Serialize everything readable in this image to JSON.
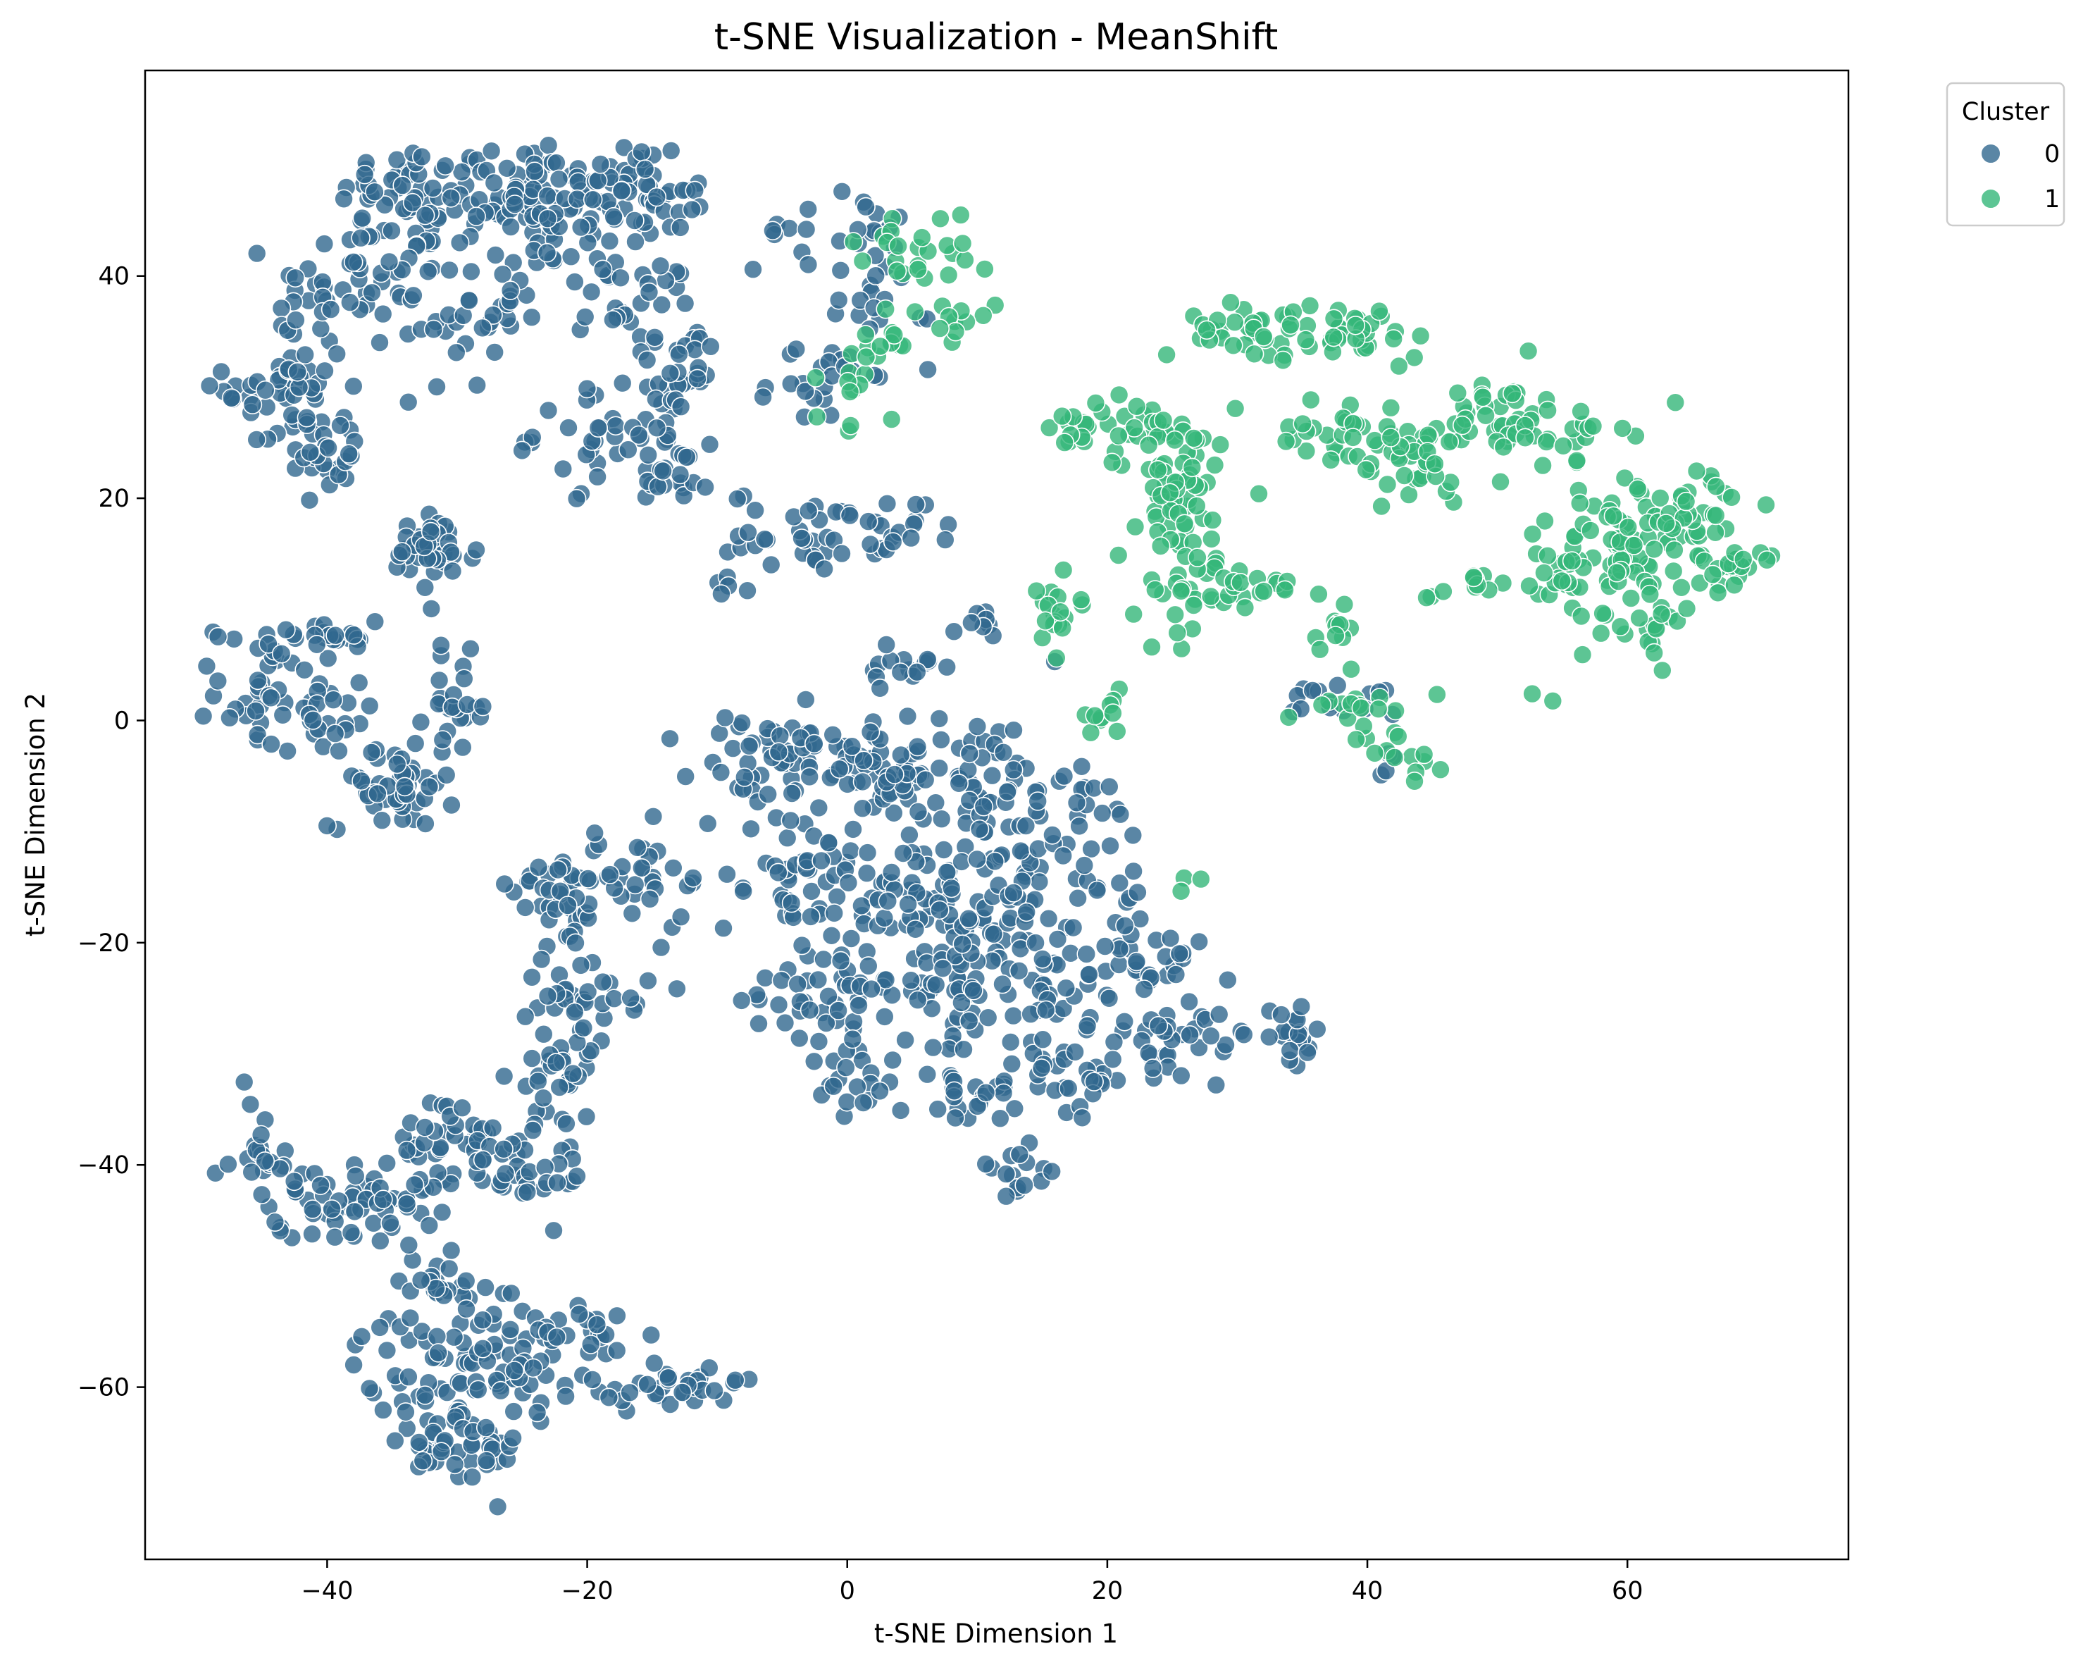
{
  "chart_data": {
    "type": "scatter",
    "title": "t-SNE Visualization - MeanShift",
    "xlabel": "t-SNE Dimension 1",
    "ylabel": "t-SNE Dimension 2",
    "xlim": [
      -54,
      77
    ],
    "ylim": [
      -75.5,
      58.5
    ],
    "xticks": [
      -40,
      -20,
      0,
      20,
      40,
      60
    ],
    "yticks": [
      -60,
      -40,
      -20,
      0,
      20,
      40
    ],
    "grid": false,
    "legend": {
      "title": "Cluster",
      "placement": "upper-right, outside axes"
    },
    "marker_alpha": 0.8,
    "marker_edge": "#ffffff",
    "series": [
      {
        "name": "0",
        "color": "#31688e",
        "blobs": [
          {
            "cx": -33,
            "cy": 47,
            "rx": 5,
            "ry": 4,
            "n": 55
          },
          {
            "cx": -25,
            "cy": 48,
            "rx": 5,
            "ry": 4,
            "n": 55
          },
          {
            "cx": -17,
            "cy": 48,
            "rx": 4,
            "ry": 4,
            "n": 50
          },
          {
            "cx": -13,
            "cy": 46,
            "rx": 2,
            "ry": 2,
            "n": 10
          },
          {
            "cx": -38,
            "cy": 39,
            "rx": 5,
            "ry": 5,
            "n": 45
          },
          {
            "cx": -30,
            "cy": 37,
            "rx": 4,
            "ry": 6,
            "n": 40
          },
          {
            "cx": -43,
            "cy": 30,
            "rx": 4,
            "ry": 5,
            "n": 50
          },
          {
            "cx": -40,
            "cy": 24,
            "rx": 3,
            "ry": 3,
            "n": 25
          },
          {
            "cx": -22,
            "cy": 43,
            "rx": 4,
            "ry": 4,
            "n": 35
          },
          {
            "cx": -16,
            "cy": 37,
            "rx": 4,
            "ry": 4,
            "n": 25
          },
          {
            "cx": -13,
            "cy": 32,
            "rx": 4,
            "ry": 3,
            "n": 20
          },
          {
            "cx": -18,
            "cy": 26,
            "rx": 5,
            "ry": 4,
            "n": 40
          },
          {
            "cx": -13,
            "cy": 23,
            "rx": 4,
            "ry": 3,
            "n": 25
          },
          {
            "cx": -32,
            "cy": 15,
            "rx": 3,
            "ry": 3,
            "n": 40
          },
          {
            "cx": -3,
            "cy": 17,
            "rx": 5,
            "ry": 3,
            "n": 35
          },
          {
            "cx": 4,
            "cy": 17,
            "rx": 3,
            "ry": 2,
            "n": 15
          },
          {
            "cx": -1,
            "cy": 44,
            "rx": 5,
            "ry": 3,
            "n": 25
          },
          {
            "cx": -1,
            "cy": 32,
            "rx": 4,
            "ry": 5,
            "n": 25
          },
          {
            "cx": 3,
            "cy": 38,
            "rx": 3,
            "ry": 3,
            "n": 12
          },
          {
            "cx": -9,
            "cy": 12,
            "rx": 1,
            "ry": 1,
            "n": 5
          },
          {
            "cx": -45,
            "cy": 3,
            "rx": 3,
            "ry": 5,
            "n": 40
          },
          {
            "cx": -40,
            "cy": 7,
            "rx": 3,
            "ry": 2,
            "n": 20
          },
          {
            "cx": -40,
            "cy": 0,
            "rx": 3,
            "ry": 3,
            "n": 20
          },
          {
            "cx": -35,
            "cy": -6,
            "rx": 4,
            "ry": 3,
            "n": 45
          },
          {
            "cx": -30,
            "cy": 1,
            "rx": 2,
            "ry": 4,
            "n": 25
          },
          {
            "cx": -6,
            "cy": -4,
            "rx": 5,
            "ry": 4,
            "n": 50
          },
          {
            "cx": 2,
            "cy": -4,
            "rx": 5,
            "ry": 4,
            "n": 50
          },
          {
            "cx": 10,
            "cy": -5,
            "rx": 6,
            "ry": 5,
            "n": 60
          },
          {
            "cx": -4,
            "cy": -14,
            "rx": 5,
            "ry": 5,
            "n": 45
          },
          {
            "cx": 4,
            "cy": -16,
            "rx": 5,
            "ry": 5,
            "n": 50
          },
          {
            "cx": 12,
            "cy": -16,
            "rx": 5,
            "ry": 5,
            "n": 50
          },
          {
            "cx": 18,
            "cy": -12,
            "rx": 5,
            "ry": 6,
            "n": 40
          },
          {
            "cx": -2,
            "cy": -24,
            "rx": 5,
            "ry": 4,
            "n": 40
          },
          {
            "cx": 7,
            "cy": -24,
            "rx": 5,
            "ry": 4,
            "n": 45
          },
          {
            "cx": 15,
            "cy": -24,
            "rx": 5,
            "ry": 4,
            "n": 40
          },
          {
            "cx": 23,
            "cy": -21,
            "rx": 4,
            "ry": 4,
            "n": 30
          },
          {
            "cx": 26,
            "cy": -28,
            "rx": 5,
            "ry": 3,
            "n": 35
          },
          {
            "cx": 0,
            "cy": -33,
            "rx": 3,
            "ry": 3,
            "n": 20
          },
          {
            "cx": 10,
            "cy": -33,
            "rx": 5,
            "ry": 3,
            "n": 30
          },
          {
            "cx": 18,
            "cy": -32,
            "rx": 4,
            "ry": 3,
            "n": 25
          },
          {
            "cx": 13,
            "cy": -40,
            "rx": 3,
            "ry": 2,
            "n": 15
          },
          {
            "cx": 34,
            "cy": -29,
            "rx": 2,
            "ry": 3,
            "n": 20
          },
          {
            "cx": 5,
            "cy": 5,
            "rx": 3,
            "ry": 2,
            "n": 15
          },
          {
            "cx": -22,
            "cy": -15,
            "rx": 3,
            "ry": 5,
            "n": 40
          },
          {
            "cx": -16,
            "cy": -15,
            "rx": 3,
            "ry": 4,
            "n": 25
          },
          {
            "cx": -20,
            "cy": -24,
            "rx": 4,
            "ry": 3,
            "n": 30
          },
          {
            "cx": -22,
            "cy": -32,
            "rx": 3,
            "ry": 4,
            "n": 30
          },
          {
            "cx": -30,
            "cy": -38,
            "rx": 4,
            "ry": 4,
            "n": 45
          },
          {
            "cx": -24,
            "cy": -40,
            "rx": 4,
            "ry": 4,
            "n": 35
          },
          {
            "cx": -41,
            "cy": -43,
            "rx": 4,
            "ry": 3,
            "n": 35
          },
          {
            "cx": -35,
            "cy": -43,
            "rx": 3,
            "ry": 3,
            "n": 25
          },
          {
            "cx": -45,
            "cy": -40,
            "rx": 2,
            "ry": 5,
            "n": 20
          },
          {
            "cx": -31,
            "cy": -50,
            "rx": 3,
            "ry": 3,
            "n": 25
          },
          {
            "cx": -33,
            "cy": -59,
            "rx": 4,
            "ry": 5,
            "n": 45
          },
          {
            "cx": -27,
            "cy": -58,
            "rx": 4,
            "ry": 5,
            "n": 40
          },
          {
            "cx": -30,
            "cy": -66,
            "rx": 4,
            "ry": 3,
            "n": 35
          },
          {
            "cx": -21,
            "cy": -56,
            "rx": 4,
            "ry": 4,
            "n": 35
          },
          {
            "cx": -15,
            "cy": -60,
            "rx": 4,
            "ry": 2,
            "n": 25
          },
          {
            "cx": -11,
            "cy": -60,
            "rx": 2,
            "ry": 1,
            "n": 10
          },
          {
            "cx": 38,
            "cy": 2,
            "rx": 4,
            "ry": 2,
            "n": 15
          },
          {
            "cx": 42,
            "cy": -4,
            "rx": 1,
            "ry": 1,
            "n": 5
          },
          {
            "cx": 11,
            "cy": 9,
            "rx": 2,
            "ry": 2,
            "n": 8
          }
        ]
      },
      {
        "name": "1",
        "color": "#35b779",
        "blobs": [
          {
            "cx": 5,
            "cy": 42,
            "rx": 4,
            "ry": 3,
            "n": 25
          },
          {
            "cx": 9,
            "cy": 37,
            "rx": 2,
            "ry": 2,
            "n": 10
          },
          {
            "cx": 1,
            "cy": 30,
            "rx": 3,
            "ry": 4,
            "n": 15
          },
          {
            "cx": 3,
            "cy": 35,
            "rx": 2,
            "ry": 2,
            "n": 8
          },
          {
            "cx": 24,
            "cy": 26,
            "rx": 4,
            "ry": 3,
            "n": 35
          },
          {
            "cx": 25,
            "cy": 19,
            "rx": 4,
            "ry": 4,
            "n": 40
          },
          {
            "cx": 27,
            "cy": 12,
            "rx": 4,
            "ry": 4,
            "n": 35
          },
          {
            "cx": 31,
            "cy": 35,
            "rx": 4,
            "ry": 2,
            "n": 30
          },
          {
            "cx": 39,
            "cy": 35,
            "rx": 5,
            "ry": 2,
            "n": 35
          },
          {
            "cx": 38,
            "cy": 26,
            "rx": 4,
            "ry": 3,
            "n": 30
          },
          {
            "cx": 44,
            "cy": 23,
            "rx": 4,
            "ry": 3,
            "n": 35
          },
          {
            "cx": 50,
            "cy": 28,
            "rx": 3,
            "ry": 3,
            "n": 30
          },
          {
            "cx": 55,
            "cy": 26,
            "rx": 4,
            "ry": 2,
            "n": 25
          },
          {
            "cx": 55,
            "cy": 14,
            "rx": 3,
            "ry": 4,
            "n": 30
          },
          {
            "cx": 60,
            "cy": 15,
            "rx": 4,
            "ry": 5,
            "n": 45
          },
          {
            "cx": 65,
            "cy": 18,
            "rx": 4,
            "ry": 4,
            "n": 45
          },
          {
            "cx": 62,
            "cy": 9,
            "rx": 3,
            "ry": 3,
            "n": 25
          },
          {
            "cx": 68,
            "cy": 14,
            "rx": 2,
            "ry": 2,
            "n": 15
          },
          {
            "cx": 47,
            "cy": 12,
            "rx": 3,
            "ry": 1,
            "n": 12
          },
          {
            "cx": 16,
            "cy": 10,
            "rx": 2,
            "ry": 3,
            "n": 18
          },
          {
            "cx": 18,
            "cy": 26,
            "rx": 3,
            "ry": 2,
            "n": 15
          },
          {
            "cx": 20,
            "cy": 1,
            "rx": 2,
            "ry": 2,
            "n": 10
          },
          {
            "cx": 40,
            "cy": 1,
            "rx": 4,
            "ry": 3,
            "n": 20
          },
          {
            "cx": 37,
            "cy": 8,
            "rx": 2,
            "ry": 2,
            "n": 10
          },
          {
            "cx": 33,
            "cy": 12,
            "rx": 3,
            "ry": 1,
            "n": 10
          },
          {
            "cx": 43,
            "cy": -4,
            "rx": 2,
            "ry": 1,
            "n": 8
          },
          {
            "cx": 26,
            "cy": -15,
            "rx": 1,
            "ry": 1,
            "n": 3
          },
          {
            "cx": 53,
            "cy": 2,
            "rx": 1,
            "ry": 1,
            "n": 2
          }
        ]
      }
    ]
  }
}
